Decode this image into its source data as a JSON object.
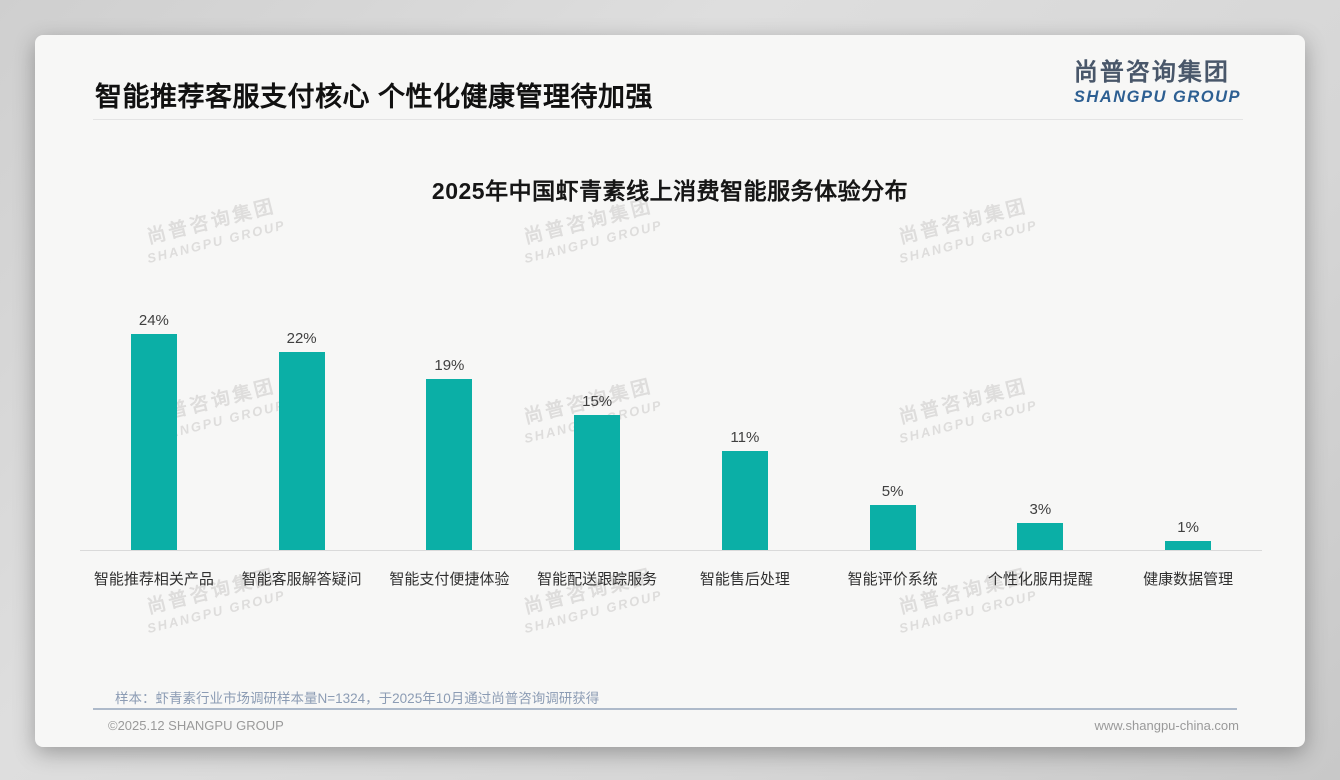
{
  "page": {
    "slide_title": "智能推荐客服支付核心 个性化健康管理待加强",
    "sample_note": "样本：虾青素行业市场调研样本量N=1324，于2025年10月通过尚普咨询调研获得",
    "footer_left": "©2025.12 SHANGPU GROUP",
    "footer_right": "www.shangpu-china.com"
  },
  "brand": {
    "logo_cn": "尚普咨询集团",
    "logo_en": "SHANGPU GROUP",
    "logo_en_color": "#2d5f92"
  },
  "watermark": {
    "line1": "尚普咨询集团",
    "line2": "SHANGPU GROUP"
  },
  "chart_data": {
    "type": "bar",
    "title": "2025年中国虾青素线上消费智能服务体验分布",
    "categories": [
      "智能推荐相关产品",
      "智能客服解答疑问",
      "智能支付便捷体验",
      "智能配送跟踪服务",
      "智能售后处理",
      "智能评价系统",
      "个性化服用提醒",
      "健康数据管理"
    ],
    "values": [
      24,
      22,
      19,
      15,
      11,
      5,
      3,
      1
    ],
    "value_labels": [
      "24%",
      "22%",
      "19%",
      "15%",
      "11%",
      "5%",
      "3%",
      "1%"
    ],
    "unit": "%",
    "bar_color": "#0bafa6",
    "xlabel": "",
    "ylabel": "",
    "ylim": [
      0,
      25
    ],
    "grid": false,
    "legend": "none"
  }
}
